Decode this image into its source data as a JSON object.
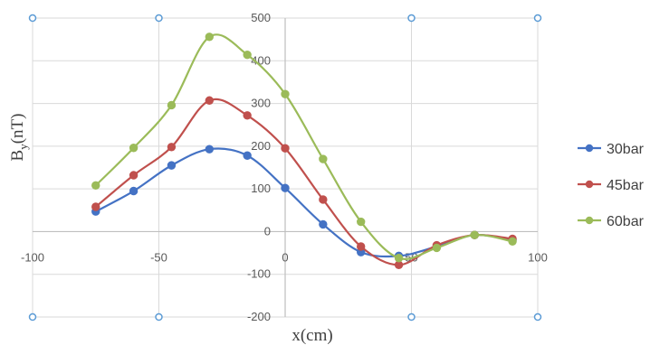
{
  "chart_data": {
    "type": "line",
    "title": "",
    "xlabel": "x(cm)",
    "ylabel_main": "B",
    "ylabel_sub": "y",
    "ylabel_tail": "(nT)",
    "xlim": [
      -100,
      100
    ],
    "ylim": [
      -200,
      500
    ],
    "xticks": [
      -100,
      -50,
      0,
      50,
      100
    ],
    "yticks": [
      -200,
      -100,
      0,
      100,
      200,
      300,
      400,
      500
    ],
    "grid": true,
    "legend_position": "right",
    "series": [
      {
        "name": "30bar",
        "color": "#4472c4",
        "x": [
          -75,
          -60,
          -45,
          -30,
          -15,
          0,
          15,
          30,
          45,
          60,
          75,
          90
        ],
        "y": [
          47,
          95,
          155,
          193,
          178,
          102,
          17,
          -48,
          -57,
          -35,
          -8,
          -20
        ]
      },
      {
        "name": "45bar",
        "color": "#c0504d",
        "x": [
          -75,
          -60,
          -45,
          -30,
          -15,
          0,
          15,
          30,
          45,
          60,
          75,
          90
        ],
        "y": [
          58,
          132,
          198,
          307,
          272,
          195,
          75,
          -35,
          -78,
          -32,
          -8,
          -17
        ]
      },
      {
        "name": "60bar",
        "color": "#9bbb59",
        "x": [
          -75,
          -60,
          -45,
          -30,
          -15,
          0,
          15,
          30,
          45,
          60,
          75,
          90
        ],
        "y": [
          108,
          196,
          296,
          456,
          414,
          322,
          170,
          23,
          -62,
          -38,
          -8,
          -23
        ]
      }
    ]
  }
}
